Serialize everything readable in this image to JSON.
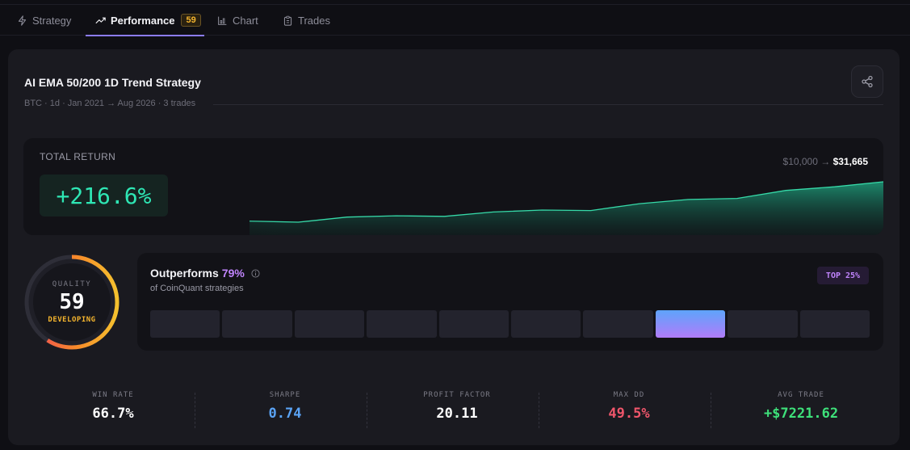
{
  "tabs": [
    {
      "label": "Strategy",
      "icon": "bolt-icon"
    },
    {
      "label": "Performance",
      "icon": "trending-up-icon",
      "badge": "59"
    },
    {
      "label": "Chart",
      "icon": "bar-chart-icon"
    },
    {
      "label": "Trades",
      "icon": "clipboard-icon"
    }
  ],
  "strategy": {
    "title": "AI EMA 50/200 1D Trend Strategy",
    "subtitle": "BTC · 1d · Jan 2021 → Aug 2026 · 3 trades"
  },
  "total_return": {
    "label": "TOTAL RETURN",
    "value": "+216.6%",
    "start": "$10,000",
    "arrow": "→",
    "end": "$31,665",
    "equity_curve": [
      10000,
      9400,
      12200,
      12900,
      12600,
      15000,
      16100,
      15800,
      19600,
      21900,
      22500,
      26900,
      28900,
      31665
    ]
  },
  "quality": {
    "label": "QUALITY",
    "score": "59",
    "status": "DEVELOPING",
    "fraction": 0.59
  },
  "outperforms": {
    "prefix": "Outperforms",
    "pct": "79%",
    "subtitle": "of CoinQuant strategies",
    "badge": "TOP 25%",
    "bucket_count": 10,
    "active_bucket": 7
  },
  "stats": [
    {
      "label": "WIN RATE",
      "value": "66.7%",
      "color": "#ffffff"
    },
    {
      "label": "SHARPE",
      "value": "0.74",
      "color": "#5aa3f5"
    },
    {
      "label": "PROFIT FACTOR",
      "value": "20.11",
      "color": "#ffffff"
    },
    {
      "label": "MAX DD",
      "value": "49.5%",
      "color": "#f0566b"
    },
    {
      "label": "AVG TRADE",
      "value": "+$7221.62",
      "color": "#3ee07a"
    }
  ],
  "colors": {
    "accent": "#8b7cf6",
    "return_green": "#2ee6b4",
    "warning": "#f5b52e",
    "purple": "#c084fc"
  }
}
